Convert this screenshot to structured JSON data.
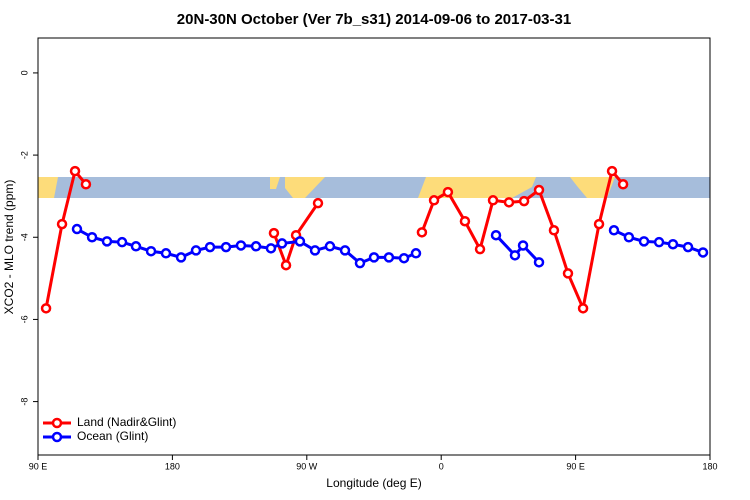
{
  "chart_data": {
    "type": "line",
    "title": "20N-30N October (Ver 7b_s31)   2014-09-06 to 2017-03-31",
    "x_label": "Longitude (deg E)",
    "y_label": "XCO2 - MLO trend (ppm)",
    "xlim": [
      90,
      540
    ],
    "ylim": [
      -9.3,
      0.85
    ],
    "xticks": [
      {
        "value": 90,
        "label": "90 E"
      },
      {
        "value": 180,
        "label": "180"
      },
      {
        "value": 270,
        "label": "90 W"
      },
      {
        "value": 360,
        "label": "0"
      },
      {
        "value": 450,
        "label": "90 E"
      },
      {
        "value": 540,
        "label": "180"
      }
    ],
    "yticks": [
      0,
      -2,
      -4,
      -6,
      -8
    ],
    "legend": "bottom-left",
    "series": [
      {
        "name": "Land (Nadir&Glint)",
        "color": "#ff0000",
        "x": [
          95.4,
          106.1,
          114.8,
          122.1,
          null,
          248.0,
          256.1,
          262.8,
          277.5,
          null,
          347.1,
          355.2,
          364.5,
          375.9,
          386.0,
          394.7,
          405.4,
          415.5,
          425.5,
          435.5,
          444.9,
          455.0,
          465.7,
          474.4,
          481.8
        ],
        "values": [
          -5.73,
          -3.68,
          -2.39,
          -2.71,
          null,
          -3.9,
          -4.68,
          -3.95,
          -3.17,
          null,
          -3.88,
          -3.1,
          -2.9,
          -3.61,
          -4.29,
          -3.1,
          -3.15,
          -3.12,
          -2.85,
          -3.83,
          -4.88,
          -5.73,
          -3.68,
          -2.39,
          -2.71
        ]
      },
      {
        "name": "Ocean (Glint)",
        "color": "#0000ff",
        "x": [
          116.1,
          126.2,
          136.2,
          146.3,
          155.6,
          165.7,
          175.7,
          185.8,
          195.8,
          205.2,
          215.9,
          225.9,
          236.0,
          246.0,
          253.4,
          265.4,
          275.5,
          285.5,
          295.6,
          305.6,
          315.0,
          325.0,
          335.1,
          343.1,
          null,
          396.7,
          409.4,
          414.8,
          425.5,
          null,
          475.7,
          485.7,
          495.8,
          505.9,
          515.2,
          525.3,
          535.3
        ],
        "values": [
          -3.8,
          -4.0,
          -4.1,
          -4.12,
          -4.22,
          -4.34,
          -4.39,
          -4.49,
          -4.32,
          -4.24,
          -4.24,
          -4.2,
          -4.22,
          -4.27,
          -4.15,
          -4.1,
          -4.32,
          -4.22,
          -4.32,
          -4.63,
          -4.49,
          -4.49,
          -4.51,
          -4.39,
          null,
          -3.95,
          -4.44,
          -4.2,
          -4.61,
          null,
          -3.83,
          -4.0,
          -4.1,
          -4.12,
          -4.17,
          -4.24,
          -4.37
        ]
      }
    ]
  }
}
